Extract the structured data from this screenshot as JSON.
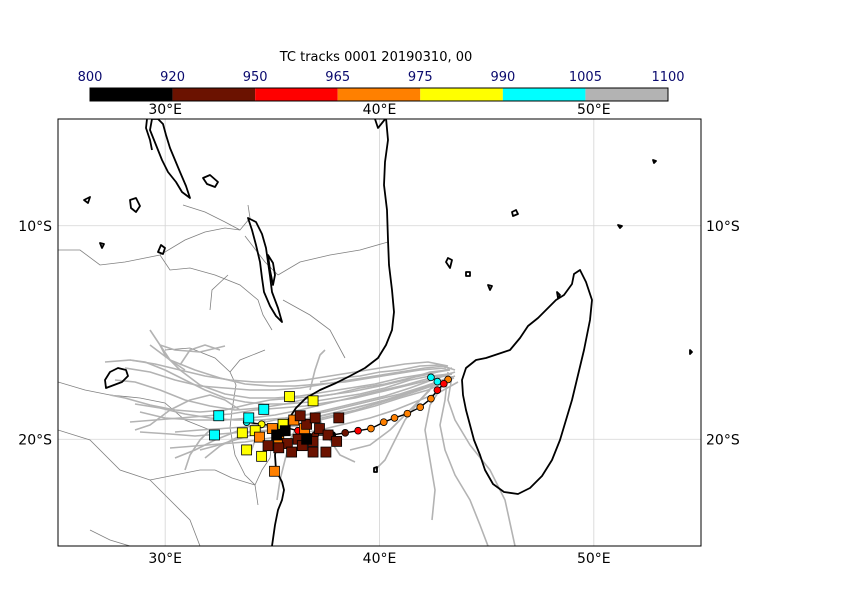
{
  "title": "TC tracks  0001 20190310, 00",
  "colorbar": {
    "labels": [
      "800",
      "920",
      "950",
      "965",
      "975",
      "990",
      "1005",
      "1100"
    ],
    "colors": [
      "#000000",
      "#6b1200",
      "#ff0000",
      "#ff8000",
      "#ffff00",
      "#00ffff",
      "#b3b3b3"
    ]
  },
  "axes": {
    "lon_range": [
      25,
      55
    ],
    "lat_range": [
      -25,
      -5
    ],
    "top_lon_labels": [
      "30°E",
      "40°E",
      "50°E"
    ],
    "bottom_lon_labels": [
      "30°E",
      "40°E",
      "50°E"
    ],
    "left_lat_labels": [
      "10°S",
      "20°S"
    ],
    "right_lat_labels": [
      "10°S",
      "20°S"
    ],
    "grid": true
  },
  "chart_data": {
    "type": "scatter",
    "description_scope": "tropical cyclone ensemble tracks; marker colour = central pressure class (hPa)",
    "main_track": [
      {
        "lon": 43.2,
        "lat": -17.2,
        "class": "975"
      },
      {
        "lon": 43.0,
        "lat": -17.4,
        "class": "965"
      },
      {
        "lon": 42.7,
        "lat": -17.7,
        "class": "965"
      },
      {
        "lon": 42.4,
        "lat": -18.1,
        "class": "975"
      },
      {
        "lon": 41.9,
        "lat": -18.5,
        "class": "975"
      },
      {
        "lon": 41.3,
        "lat": -18.8,
        "class": "975"
      },
      {
        "lon": 40.7,
        "lat": -19.0,
        "class": "975"
      },
      {
        "lon": 40.2,
        "lat": -19.2,
        "class": "975"
      },
      {
        "lon": 39.6,
        "lat": -19.5,
        "class": "975"
      },
      {
        "lon": 39.0,
        "lat": -19.6,
        "class": "965"
      },
      {
        "lon": 38.4,
        "lat": -19.7,
        "class": "950"
      },
      {
        "lon": 37.8,
        "lat": -19.8,
        "class": "920"
      },
      {
        "lon": 37.0,
        "lat": -19.8,
        "class": "950"
      },
      {
        "lon": 36.2,
        "lat": -19.6,
        "class": "965"
      },
      {
        "lon": 35.4,
        "lat": -19.4,
        "class": "975"
      },
      {
        "lon": 34.5,
        "lat": -19.3,
        "class": "990"
      },
      {
        "lon": 33.8,
        "lat": -19.2,
        "class": "1005"
      }
    ],
    "main_track_start": [
      {
        "lon": 42.4,
        "lat": -17.1,
        "class": "1005"
      },
      {
        "lon": 42.7,
        "lat": -17.3,
        "class": "1005"
      }
    ],
    "end_markers": [
      {
        "lon": 32.5,
        "lat": -18.9,
        "class": "1005"
      },
      {
        "lon": 32.3,
        "lat": -19.8,
        "class": "1005"
      },
      {
        "lon": 33.9,
        "lat": -19.0,
        "class": "1005"
      },
      {
        "lon": 34.6,
        "lat": -18.6,
        "class": "1005"
      },
      {
        "lon": 35.8,
        "lat": -18.0,
        "class": "990"
      },
      {
        "lon": 36.9,
        "lat": -18.2,
        "class": "990"
      },
      {
        "lon": 33.6,
        "lat": -19.7,
        "class": "990"
      },
      {
        "lon": 34.2,
        "lat": -19.6,
        "class": "990"
      },
      {
        "lon": 35.5,
        "lat": -19.3,
        "class": "990"
      },
      {
        "lon": 33.8,
        "lat": -20.5,
        "class": "990"
      },
      {
        "lon": 34.5,
        "lat": -20.8,
        "class": "990"
      },
      {
        "lon": 34.4,
        "lat": -19.9,
        "class": "975"
      },
      {
        "lon": 35.0,
        "lat": -19.5,
        "class": "975"
      },
      {
        "lon": 35.3,
        "lat": -20.1,
        "class": "975"
      },
      {
        "lon": 36.0,
        "lat": -19.1,
        "class": "975"
      },
      {
        "lon": 36.5,
        "lat": -19.5,
        "class": "975"
      },
      {
        "lon": 35.1,
        "lat": -21.5,
        "class": "975"
      },
      {
        "lon": 34.8,
        "lat": -20.3,
        "class": "950"
      },
      {
        "lon": 35.7,
        "lat": -20.2,
        "class": "950"
      },
      {
        "lon": 36.2,
        "lat": -20.0,
        "class": "950"
      },
      {
        "lon": 36.6,
        "lat": -19.3,
        "class": "950"
      },
      {
        "lon": 37.2,
        "lat": -19.5,
        "class": "950"
      },
      {
        "lon": 37.6,
        "lat": -19.8,
        "class": "950"
      },
      {
        "lon": 38.1,
        "lat": -19.0,
        "class": "950"
      },
      {
        "lon": 38.0,
        "lat": -20.1,
        "class": "950"
      },
      {
        "lon": 36.9,
        "lat": -20.6,
        "class": "950"
      },
      {
        "lon": 37.5,
        "lat": -20.6,
        "class": "950"
      },
      {
        "lon": 35.9,
        "lat": -20.6,
        "class": "950"
      },
      {
        "lon": 35.3,
        "lat": -20.4,
        "class": "950"
      },
      {
        "lon": 36.4,
        "lat": -20.3,
        "class": "950"
      },
      {
        "lon": 37.0,
        "lat": -19.0,
        "class": "950"
      },
      {
        "lon": 36.3,
        "lat": -18.9,
        "class": "950"
      },
      {
        "lon": 36.9,
        "lat": -20.1,
        "class": "950"
      },
      {
        "lon": 35.6,
        "lat": -19.6,
        "class": "920"
      },
      {
        "lon": 36.6,
        "lat": -20.0,
        "class": "920"
      },
      {
        "lon": 35.2,
        "lat": -19.8,
        "class": "920"
      }
    ]
  }
}
